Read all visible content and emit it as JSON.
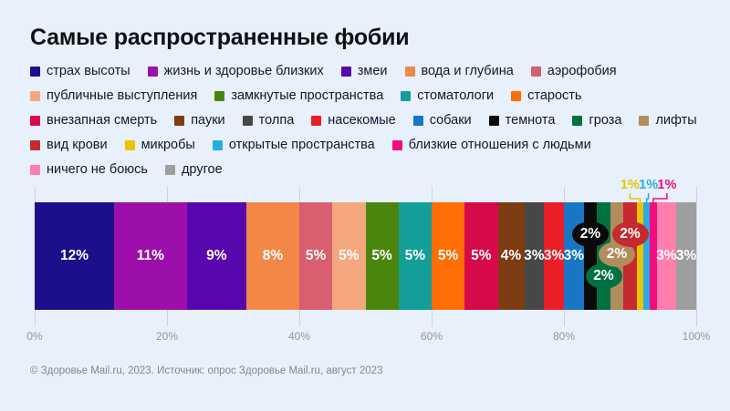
{
  "title": "Самые распространенные фобии",
  "footer": {
    "source": "© Здоровье Mail.ru, 2023. Источник: опрос Здоровье Mail.ru, август 2023"
  },
  "colors": {
    "background": "#E8F0FB",
    "title_text": "#0E1118",
    "legend_text": "#14172A",
    "axis_text": "#8E98A8",
    "gridline": "#C9D3E0",
    "bar_label_text": "#FFFFFF"
  },
  "chart_data": {
    "type": "bar",
    "subtype": "horizontal-stacked-single-bar",
    "title": "Самые распространенные фобии",
    "xlabel": "",
    "ylabel": "",
    "xlim": [
      0,
      100
    ],
    "x_ticks": [
      "0%",
      "20%",
      "40%",
      "60%",
      "80%",
      "100%"
    ],
    "grid": "vertical",
    "legend_position": "top",
    "segments": [
      {
        "name": "страх высоты",
        "value": 12,
        "label": "12%",
        "color": "#1B0F8C",
        "label_pos": "inside"
      },
      {
        "name": "жизнь и здоровье близких",
        "value": 11,
        "label": "11%",
        "color": "#9D0FAA",
        "label_pos": "inside"
      },
      {
        "name": "змеи",
        "value": 9,
        "label": "9%",
        "color": "#5807AE",
        "label_pos": "inside"
      },
      {
        "name": "вода и глубина",
        "value": 8,
        "label": "8%",
        "color": "#F28748",
        "label_pos": "inside"
      },
      {
        "name": "аэрофобия",
        "value": 5,
        "label": "5%",
        "color": "#D75F6F",
        "label_pos": "inside"
      },
      {
        "name": "публичные выступления",
        "value": 5,
        "label": "5%",
        "color": "#F5A87F",
        "label_pos": "inside"
      },
      {
        "name": "замкнутые пространства",
        "value": 5,
        "label": "5%",
        "color": "#4A860D",
        "label_pos": "inside"
      },
      {
        "name": "стоматологи",
        "value": 5,
        "label": "5%",
        "color": "#149E99",
        "label_pos": "inside"
      },
      {
        "name": "старость",
        "value": 5,
        "label": "5%",
        "color": "#FF6E04",
        "label_pos": "inside"
      },
      {
        "name": "внезапная смерть",
        "value": 5,
        "label": "5%",
        "color": "#D60A48",
        "label_pos": "inside"
      },
      {
        "name": "пауки",
        "value": 4,
        "label": "4%",
        "color": "#7D3C11",
        "label_pos": "inside"
      },
      {
        "name": "толпа",
        "value": 3,
        "label": "3%",
        "color": "#474747",
        "label_pos": "inside"
      },
      {
        "name": "насекомые",
        "value": 3,
        "label": "3%",
        "color": "#EB1D26",
        "label_pos": "inside"
      },
      {
        "name": "собаки",
        "value": 3,
        "label": "3%",
        "color": "#1A75C4",
        "label_pos": "inside"
      },
      {
        "name": "темнота",
        "value": 2,
        "label": "2%",
        "color": "#0A0A0A",
        "label_pos": "bubble-high"
      },
      {
        "name": "гроза",
        "value": 2,
        "label": "2%",
        "color": "#027140",
        "label_pos": "bubble-low"
      },
      {
        "name": "лифты",
        "value": 2,
        "label": "2%",
        "color": "#B18C5D",
        "label_pos": "bubble-mid"
      },
      {
        "name": "вид крови",
        "value": 2,
        "label": "2%",
        "color": "#C42A2F",
        "label_pos": "bubble-high"
      },
      {
        "name": "микробы",
        "value": 1,
        "label": "1%",
        "color": "#E7C504",
        "label_pos": "callout"
      },
      {
        "name": "открытые пространства",
        "value": 1,
        "label": "1%",
        "color": "#29ABE2",
        "label_pos": "callout"
      },
      {
        "name": "близкие отношения с людьми",
        "value": 1,
        "label": "1%",
        "color": "#F20C7F",
        "label_pos": "callout"
      },
      {
        "name": "ничего не боюсь",
        "value": 3,
        "label": "3%",
        "color": "#FF7EAE",
        "label_pos": "inside"
      },
      {
        "name": "другое",
        "value": 3,
        "label": "3%",
        "color": "#9E9E9E",
        "label_pos": "inside"
      }
    ],
    "legend_rows": [
      [
        0,
        1,
        2,
        3,
        4
      ],
      [
        5,
        6,
        7,
        8
      ],
      [
        9,
        10,
        11,
        12,
        13,
        14,
        15,
        16
      ],
      [
        17,
        18,
        19,
        20
      ],
      [
        21,
        22
      ]
    ]
  }
}
